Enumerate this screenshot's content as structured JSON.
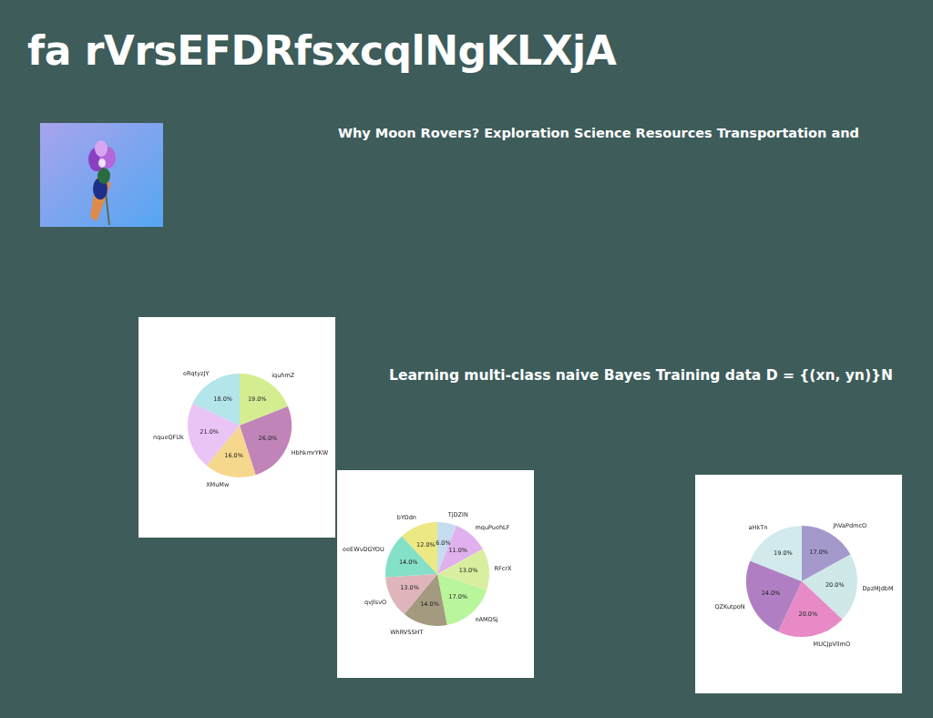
{
  "title": "fa rVrsEFDRfsxcqlNgKLXjA",
  "texts": [
    "Why Moon Rovers? Exploration Science Resources Transportation and",
    "Learning multi-class naive Bayes Training data D = {(xn, yn)}N"
  ],
  "chart_data": [
    {
      "type": "pie",
      "categories": [
        "iquhmZ",
        "HbhkmrYKW",
        "XMuMw",
        "nqueQFUk",
        "eRqtyzJY"
      ],
      "values": [
        19,
        26,
        16,
        21,
        18
      ],
      "value_labels": [
        "19.0%",
        "26.0%",
        "16.0%",
        "21.0%",
        "18.0%"
      ],
      "colors": [
        "#d4ed91",
        "#c184b8",
        "#f5d78e",
        "#eac4f5",
        "#b3e5ea"
      ],
      "data_labels": true
    },
    {
      "type": "pie",
      "categories": [
        "TjDZIN",
        "mquPuehLF",
        "RFcrX",
        "nAMDSj",
        "WhRVSSHT",
        "qvJlsvO",
        "eeEWvDGYOU",
        "bYOdn"
      ],
      "values": [
        6,
        11,
        13,
        17,
        14,
        13,
        14,
        12
      ],
      "value_labels": [
        "6.0%",
        "11.0%",
        "13.0%",
        "17.0%",
        "14.0%",
        "13.0%",
        "14.0%",
        "12.0%"
      ],
      "colors": [
        "#c6dcef",
        "#e1b0ee",
        "#d9ee9f",
        "#b9f59a",
        "#a39a80",
        "#e0b4bb",
        "#85e0c8",
        "#ece883"
      ],
      "data_labels": true
    },
    {
      "type": "pie",
      "categories": [
        "jhVaPdmcO",
        "DpzMJdbM",
        "MUCJpVllmO",
        "QZKutpoN",
        "aHkTn"
      ],
      "values": [
        17,
        20,
        20,
        24,
        19
      ],
      "value_labels": [
        "17.0%",
        "20.0%",
        "20.0%",
        "24.0%",
        "19.0%"
      ],
      "colors": [
        "#a599cc",
        "#cfe8e8",
        "#e78ac6",
        "#b07fc3",
        "#d2eaec"
      ],
      "data_labels": true
    }
  ]
}
